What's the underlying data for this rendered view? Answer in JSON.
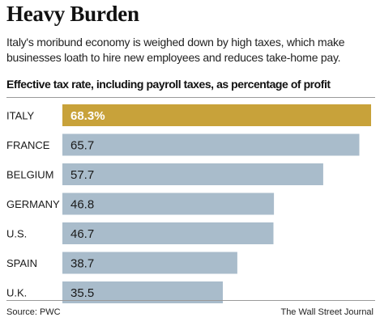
{
  "header": {
    "title": "Heavy Burden",
    "subtitle": "Italy's moribund economy is weighed down by high taxes, which make businesses loath to hire new employees and reduces take-home pay."
  },
  "chart_data": {
    "type": "bar",
    "orientation": "horizontal",
    "title": "Effective tax rate, including payroll taxes, as percentage of profit",
    "categories": [
      "ITALY",
      "FRANCE",
      "BELGIUM",
      "GERMANY",
      "U.S.",
      "SPAIN",
      "U.K."
    ],
    "values": [
      68.3,
      65.7,
      57.7,
      46.8,
      46.7,
      38.7,
      35.5
    ],
    "value_labels": [
      "68.3%",
      "65.7",
      "57.7",
      "46.8",
      "46.7",
      "38.7",
      "35.5"
    ],
    "xlim": [
      0,
      68.3
    ],
    "grid": false,
    "legend": "none",
    "colors": {
      "highlight": "#c8a23a",
      "default": "#a9bccb",
      "highlight_label": "#ffffff",
      "default_label": "#1a1a1a"
    },
    "highlight_index": 0
  },
  "footer": {
    "source": "Source: PWC",
    "credit": "The Wall Street Journal"
  }
}
